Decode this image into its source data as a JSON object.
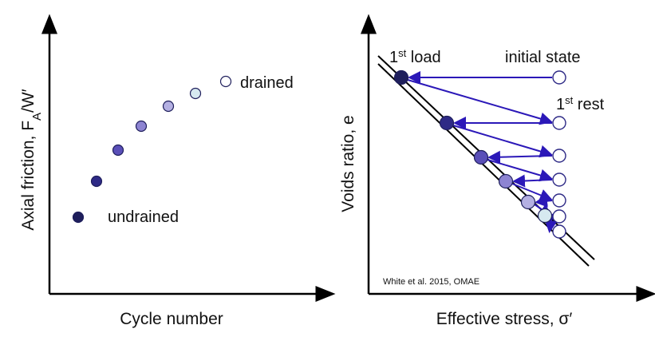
{
  "left_panel": {
    "ylabel_main": "Axial friction, F",
    "ylabel_sub": "A",
    "ylabel_tail": "/W′",
    "xlabel": "Cycle number",
    "label_drained": "drained",
    "label_undrained": "undrained",
    "point_colors": [
      "#1f1f5c",
      "#2e2a86",
      "#5a4fb8",
      "#8d84d2",
      "#b4b0e2",
      "#d6e9f0",
      "#ffffff"
    ]
  },
  "right_panel": {
    "ylabel": "Voids ratio, e",
    "xlabel": "Effective stress, σ′",
    "label_first_load_num": "1",
    "label_first_load_sup": "st",
    "label_first_load_text": " load",
    "label_initial_state": "initial state",
    "label_first_rest_num": "1",
    "label_first_rest_sup": "st",
    "label_first_rest_text": " rest",
    "citation": "White et al. 2015, OMAE",
    "point_colors": [
      "#1f1f5c",
      "#2e2a86",
      "#5a4fb8",
      "#8d84d2",
      "#b4b0e2",
      "#d6e9f0"
    ],
    "arrow_color": "#2b18b8"
  }
}
